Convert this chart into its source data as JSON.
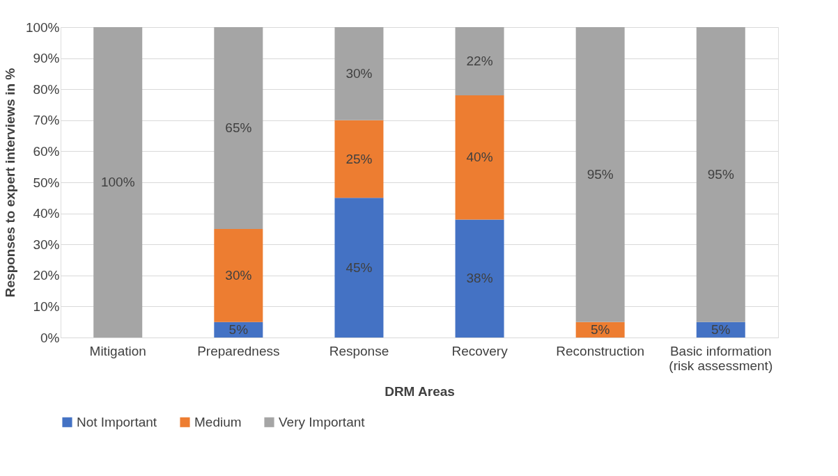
{
  "chart_data": {
    "type": "bar",
    "stacked": true,
    "xlabel": "DRM Areas",
    "ylabel": "Responses to expert interviews in %",
    "categories": [
      "Mitigation",
      "Preparedness",
      "Response",
      "Recovery",
      "Reconstruction",
      "Basic information\n(risk assessment)"
    ],
    "series": [
      {
        "name": "Not Important",
        "color": "#4472c4",
        "values": [
          0,
          5,
          45,
          38,
          0,
          5
        ],
        "value_labels": [
          null,
          "5%",
          "45%",
          "38%",
          null,
          "5%"
        ]
      },
      {
        "name": "Medium",
        "color": "#ed7d31",
        "values": [
          0,
          30,
          25,
          40,
          5,
          0
        ],
        "value_labels": [
          null,
          "30%",
          "25%",
          "40%",
          "5%",
          null
        ]
      },
      {
        "name": "Very Important",
        "color": "#a5a5a5",
        "values": [
          100,
          65,
          30,
          22,
          95,
          95
        ],
        "value_labels": [
          "100%",
          "65%",
          "30%",
          "22%",
          "95%",
          "95%"
        ]
      }
    ],
    "ylim": [
      0,
      100
    ],
    "yticks": [
      {
        "value": 0,
        "label": "0%"
      },
      {
        "value": 10,
        "label": "10%"
      },
      {
        "value": 20,
        "label": "20%"
      },
      {
        "value": 30,
        "label": "30%"
      },
      {
        "value": 40,
        "label": "40%"
      },
      {
        "value": 50,
        "label": "50%"
      },
      {
        "value": 60,
        "label": "60%"
      },
      {
        "value": 70,
        "label": "70%"
      },
      {
        "value": 80,
        "label": "80%"
      },
      {
        "value": 90,
        "label": "90%"
      },
      {
        "value": 100,
        "label": "100%"
      }
    ],
    "grid": "y",
    "legend": "bottom"
  }
}
